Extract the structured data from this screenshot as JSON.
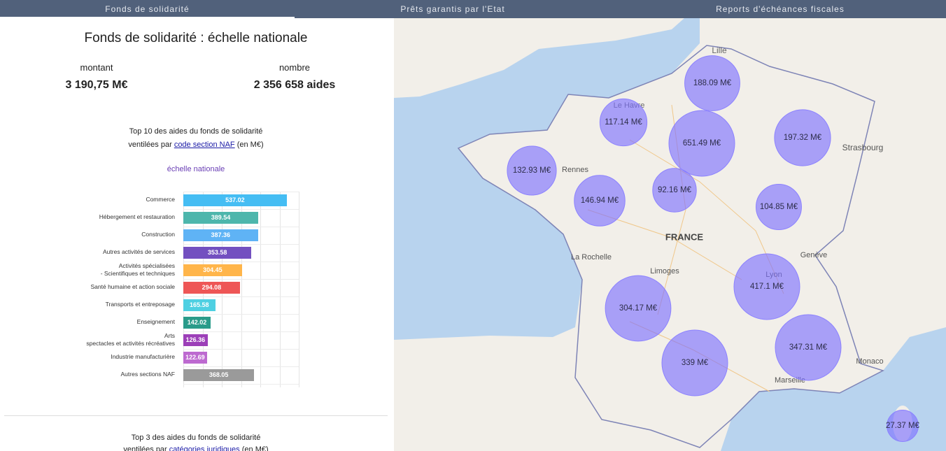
{
  "tabs": [
    "Fonds de solidarité",
    "Prêts garantis par l'Etat",
    "Reports d'échéances fiscales"
  ],
  "panel": {
    "title_prefix": "Fonds de solidarité :",
    "title_emphasis": "échelle nationale",
    "kpis": [
      {
        "label": "montant",
        "value": "3 190,75 M€"
      },
      {
        "label": "nombre",
        "value": "2 356 658 aides"
      }
    ]
  },
  "chart_data": {
    "type": "bar",
    "orientation": "horizontal",
    "title_line1": "Top 10 des aides du fonds de solidarité",
    "title_line2_prefix": "ventilées par",
    "title_link": "code section NAF",
    "title_line2_suffix": "(en M€)",
    "subtitle": "échelle nationale",
    "categories": [
      "Commerce",
      "Hébergement et restauration",
      "Construction",
      "Autres activités de services",
      "Activités spécialisées\n- Scientifiques et techniques",
      "Santé humaine et action sociale",
      "Transports et entreposage",
      "Enseignement",
      "Arts\nspectacles et activités récréatives",
      "Industrie manufacturière",
      "Autres sections NAF"
    ],
    "values": [
      537.02,
      389.54,
      387.36,
      353.58,
      304.45,
      294.08,
      165.58,
      142.02,
      126.36,
      122.69,
      368.05
    ],
    "colors": [
      "#45bdf3",
      "#4db6ac",
      "#5fb3f5",
      "#7350c0",
      "#ffb54a",
      "#ee5656",
      "#4fd0e2",
      "#2a9b8a",
      "#9c3fb8",
      "#bd6ad0",
      "#9a9a9a"
    ],
    "xlim": [
      0,
      600
    ],
    "xticks": [
      0,
      100,
      200,
      300,
      400,
      500,
      600
    ],
    "grid": true
  },
  "next_section": {
    "title_line1": "Top 3 des aides du fonds de solidarité",
    "title_line2_prefix": "ventilées par",
    "title_link": "catégories juridiques",
    "title_line2_suffix": "(en M€)"
  },
  "map": {
    "places": [
      "Lille",
      "Le Havre",
      "Rennes",
      "Strasbourg",
      "FRANCE",
      "La Rochelle",
      "Limoges",
      "Genève",
      "Lyon",
      "Marseille",
      "Monaco"
    ],
    "bubbles": [
      {
        "value": 188.09,
        "label": "188.09 M€"
      },
      {
        "value": 117.14,
        "label": "117.14 M€"
      },
      {
        "value": 651.49,
        "label": "651.49 M€"
      },
      {
        "value": 197.32,
        "label": "197.32 M€"
      },
      {
        "value": 132.93,
        "label": "132.93 M€"
      },
      {
        "value": 146.94,
        "label": "146.94 M€"
      },
      {
        "value": 92.16,
        "label": "92.16 M€"
      },
      {
        "value": 104.85,
        "label": "104.85 M€"
      },
      {
        "value": 417.1,
        "label": "417.1 M€"
      },
      {
        "value": 304.17,
        "label": "304.17 M€"
      },
      {
        "value": 347.31,
        "label": "347.31 M€"
      },
      {
        "value": 339,
        "label": "339 M€"
      },
      {
        "value": 27.37,
        "label": "27.37 M€"
      }
    ]
  }
}
